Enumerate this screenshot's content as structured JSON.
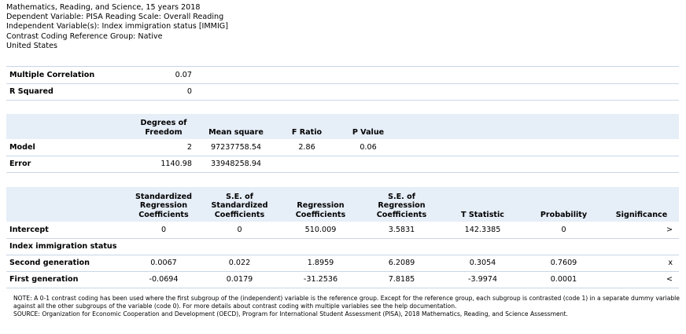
{
  "header": {
    "line1": "Mathematics, Reading, and Science, 15 years 2018",
    "line2": "Dependent Variable: PISA Reading Scale: Overall Reading",
    "line3": "Independent Variable(s): Index immigration status [IMMIG]",
    "line4": "Contrast Coding Reference Group: Native",
    "line5": "United States"
  },
  "fit": {
    "rows": [
      {
        "label": "Multiple Correlation",
        "value": "0.07"
      },
      {
        "label": "R Squared",
        "value": "0"
      }
    ]
  },
  "anova": {
    "headers": {
      "df": "Degrees of Freedom",
      "df_a": "Degrees of",
      "df_b": "Freedom",
      "ms": "Mean square",
      "f": "F Ratio",
      "p": "P Value"
    },
    "rows": [
      {
        "label": "Model",
        "df": "2",
        "ms": "97237758.54",
        "f": "2.86",
        "p": "0.06"
      },
      {
        "label": "Error",
        "df": "1140.98",
        "ms": "33948258.94",
        "f": "",
        "p": ""
      }
    ]
  },
  "coef": {
    "headers": {
      "std_a": "Standardized",
      "std_b": "Regression",
      "std_c": "Coefficients",
      "sestd_a": "S.E. of",
      "sestd_b": "Standardized",
      "sestd_c": "Coefficients",
      "reg_a": "Regression",
      "reg_b": "Coefficients",
      "sereg_a": "S.E. of",
      "sereg_b": "Regression",
      "sereg_c": "Coefficients",
      "t": "T Statistic",
      "prob": "Probability",
      "sig": "Significance"
    },
    "rows": [
      {
        "label": "Intercept",
        "std": "0",
        "sestd": "0",
        "reg": "510.009",
        "sereg": "3.5831",
        "t": "142.3385",
        "prob": "0",
        "sig": ">"
      },
      {
        "label": "Index immigration status",
        "std": "",
        "sestd": "",
        "reg": "",
        "sereg": "",
        "t": "",
        "prob": "",
        "sig": ""
      },
      {
        "label": "Second generation",
        "std": "0.0067",
        "sestd": "0.022",
        "reg": "1.8959",
        "sereg": "6.2089",
        "t": "0.3054",
        "prob": "0.7609",
        "sig": "x"
      },
      {
        "label": "First generation",
        "std": "-0.0694",
        "sestd": "0.0179",
        "reg": "-31.2536",
        "sereg": "7.8185",
        "t": "-3.9974",
        "prob": "0.0001",
        "sig": "<"
      }
    ]
  },
  "note": {
    "text": "NOTE: A 0-1 contrast coding has been used where the first subgroup of the (independent) variable is the reference group. Except for the reference group, each subgroup is contrasted (code 1) in a separate dummy variable against all the other subgroups of the variable (code 0). For more details about contrast coding with multiple variables see the help documentation.",
    "source": "SOURCE: Organization for Economic Cooperation and Development (OECD), Program for International Student Assessment (PISA), 2018 Mathematics, Reading, and Science Assessment."
  }
}
